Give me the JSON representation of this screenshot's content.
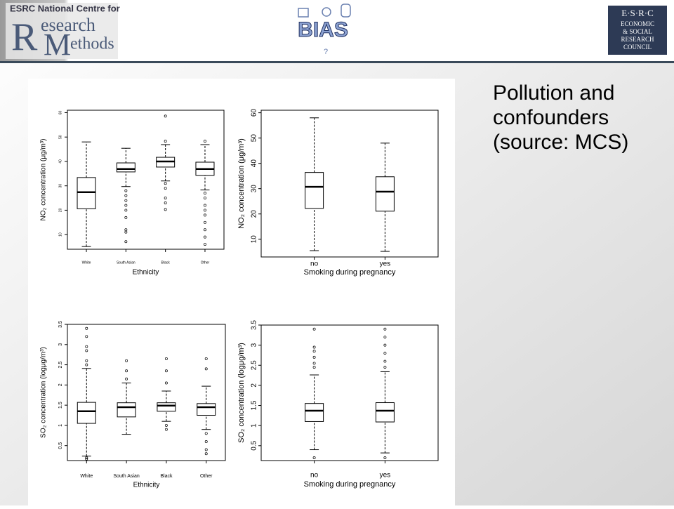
{
  "header": {
    "ncrm": {
      "top": "ESRC National Centre for",
      "r": "R",
      "esearch": "esearch",
      "m": "M",
      "ethods": "ethods"
    },
    "bias": {
      "name": "BIAS",
      "mark": "?"
    },
    "esrc": {
      "initials": "E·S·R·C",
      "lines": [
        "ECONOMIC",
        "& SOCIAL",
        "RESEARCH",
        "COUNCIL"
      ]
    }
  },
  "title": "Pollution and confounders (source: MCS)",
  "chart_data": [
    {
      "type": "box",
      "ylabel": "NO₂ concentration (μg/m³)",
      "xlabel": "Ethnicity",
      "categories": [
        "White",
        "South Asian",
        "Black",
        "Other"
      ],
      "boxes": [
        {
          "min": 5.1,
          "q1": 20.6,
          "median": 27.4,
          "q3": 33.4,
          "max": 48,
          "outliers": []
        },
        {
          "min": 29.7,
          "q1": 35.7,
          "median": 36.9,
          "q3": 39.4,
          "max": 45.4,
          "outliers": [
            7.1,
            11,
            12,
            17,
            20,
            22,
            24,
            26,
            28
          ]
        },
        {
          "min": 32,
          "q1": 37.7,
          "median": 40,
          "q3": 41.7,
          "max": 46.9,
          "outliers": [
            58.6,
            48.3,
            20.3,
            23,
            25,
            29,
            31
          ]
        },
        {
          "min": 28.3,
          "q1": 34.3,
          "median": 36.9,
          "q3": 39.7,
          "max": 46.9,
          "outliers": [
            48.3,
            6,
            9,
            12,
            15,
            18,
            20,
            22,
            25,
            27
          ]
        }
      ],
      "ylim": [
        4,
        61
      ],
      "yticks": [
        10,
        20,
        30,
        40,
        50,
        60
      ]
    },
    {
      "type": "box",
      "ylabel": "NO₂ concentration (μg/m³)",
      "xlabel": "Smoking during pregnancy",
      "categories": [
        "no",
        "yes"
      ],
      "boxes": [
        {
          "min": 5.5,
          "q1": 22.2,
          "median": 30.7,
          "q3": 36.4,
          "max": 58,
          "outliers": []
        },
        {
          "min": 5.2,
          "q1": 21.1,
          "median": 28.8,
          "q3": 34.7,
          "max": 48,
          "outliers": []
        }
      ],
      "ylim": [
        3,
        61
      ],
      "yticks": [
        10,
        20,
        30,
        40,
        50,
        60
      ]
    },
    {
      "type": "box",
      "ylabel": "SO₂ concentration (logμg/m³)",
      "xlabel": "Ethnicity",
      "categories": [
        "White",
        "South Asian",
        "Black",
        "Other"
      ],
      "boxes": [
        {
          "min": 0.24,
          "q1": 1.05,
          "median": 1.35,
          "q3": 1.57,
          "max": 2.41,
          "outliers": [
            3.4,
            3.2,
            2.95,
            2.85,
            2.6,
            2.5,
            0.17,
            0.2
          ]
        },
        {
          "min": 0.78,
          "q1": 1.21,
          "median": 1.45,
          "q3": 1.56,
          "max": 2.05,
          "outliers": [
            2.15,
            2.35,
            2.6
          ]
        },
        {
          "min": 1.1,
          "q1": 1.35,
          "median": 1.49,
          "q3": 1.56,
          "max": 1.85,
          "outliers": [
            2.05,
            2.35,
            2.65,
            1.0,
            0.9
          ]
        },
        {
          "min": 0.9,
          "q1": 1.25,
          "median": 1.45,
          "q3": 1.54,
          "max": 1.97,
          "outliers": [
            2.4,
            2.65,
            0.8,
            0.6,
            0.4,
            0.3
          ]
        }
      ],
      "ylim": [
        0.13,
        3.5
      ],
      "yticks": [
        0.5,
        1.0,
        1.5,
        2.0,
        2.5,
        3.0,
        3.5
      ]
    },
    {
      "type": "box",
      "ylabel": "SO₂ concentration (logμg/m³)",
      "xlabel": "Smoking during pregnancy",
      "categories": [
        "no",
        "yes"
      ],
      "boxes": [
        {
          "min": 0.4,
          "q1": 1.1,
          "median": 1.37,
          "q3": 1.55,
          "max": 2.26,
          "outliers": [
            3.4,
            2.95,
            2.85,
            2.7,
            2.55,
            2.45,
            0.2
          ]
        },
        {
          "min": 0.32,
          "q1": 1.09,
          "median": 1.37,
          "q3": 1.57,
          "max": 2.34,
          "outliers": [
            3.4,
            3.2,
            3.0,
            2.8,
            2.6,
            2.45,
            0.2
          ]
        }
      ],
      "ylim": [
        0.13,
        3.5
      ],
      "yticks": [
        0.5,
        1.0,
        1.5,
        2.0,
        2.5,
        3.0,
        3.5
      ]
    }
  ]
}
